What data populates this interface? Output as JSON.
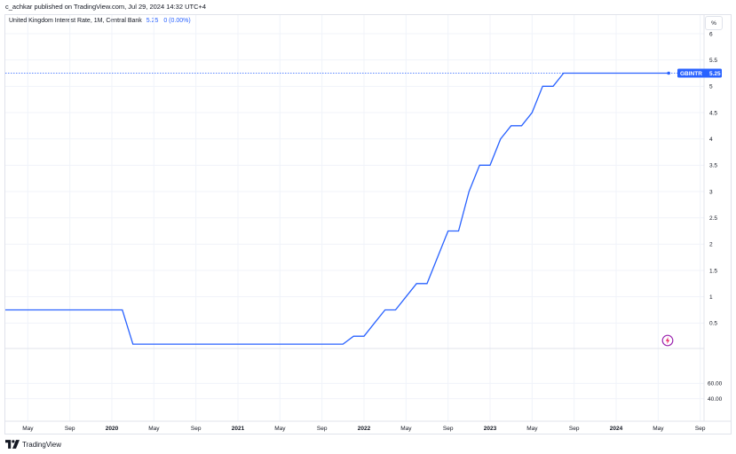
{
  "publisher_line": "c_achkar published on TradingView.com, Jul 29, 2024 14:32 UTC+4",
  "legend": {
    "symbol_desc": "United Kingdom Interest Rate, 1M, Central Bank",
    "last_value": "5.25",
    "change": "0 (0.00%)"
  },
  "scale_button": "%",
  "price_tag": {
    "symbol": "GBINTR",
    "value": "5.25"
  },
  "brand": "TradingView",
  "icons": {
    "brand_logo": "tradingview-logo-icon",
    "flash": "lightning-icon"
  },
  "colors": {
    "line": "#2962ff",
    "tag_bg": "#2962ff",
    "flash": "#9c27b0"
  },
  "chart_data": {
    "type": "line",
    "series": [
      {
        "x": [
          "2019-01",
          "2019-02",
          "2019-03",
          "2019-04",
          "2019-05",
          "2019-06",
          "2019-07",
          "2019-08",
          "2019-09",
          "2019-10",
          "2019-11",
          "2019-12",
          "2020-01",
          "2020-02",
          "2020-03",
          "2020-04",
          "2020-05",
          "2020-06",
          "2020-07",
          "2020-08",
          "2020-09",
          "2020-10",
          "2020-11",
          "2020-12",
          "2021-01",
          "2021-02",
          "2021-03",
          "2021-04",
          "2021-05",
          "2021-06",
          "2021-07",
          "2021-08",
          "2021-09",
          "2021-10",
          "2021-11",
          "2021-12",
          "2022-01",
          "2022-02",
          "2022-03",
          "2022-04",
          "2022-05",
          "2022-06",
          "2022-07",
          "2022-08",
          "2022-09",
          "2022-10",
          "2022-11",
          "2022-12",
          "2023-01",
          "2023-02",
          "2023-03",
          "2023-04",
          "2023-05",
          "2023-06",
          "2023-07",
          "2023-08",
          "2023-09",
          "2023-10",
          "2023-11",
          "2023-12",
          "2024-01",
          "2024-02",
          "2024-03",
          "2024-04",
          "2024-05",
          "2024-06"
        ],
        "y": [
          0.75,
          0.75,
          0.75,
          0.75,
          0.75,
          0.75,
          0.75,
          0.75,
          0.75,
          0.75,
          0.75,
          0.75,
          0.75,
          0.75,
          0.1,
          0.1,
          0.1,
          0.1,
          0.1,
          0.1,
          0.1,
          0.1,
          0.1,
          0.1,
          0.1,
          0.1,
          0.1,
          0.1,
          0.1,
          0.1,
          0.1,
          0.1,
          0.1,
          0.1,
          0.1,
          0.25,
          0.25,
          0.5,
          0.75,
          0.75,
          1.0,
          1.25,
          1.25,
          1.75,
          2.25,
          2.25,
          3.0,
          3.5,
          3.5,
          4.0,
          4.25,
          4.25,
          4.5,
          5.0,
          5.0,
          5.25,
          5.25,
          5.25,
          5.25,
          5.25,
          5.25,
          5.25,
          5.25,
          5.25,
          5.25,
          5.25
        ]
      }
    ],
    "y_ticks": [
      "6",
      "5.5",
      "5",
      "4.5",
      "4",
      "3.5",
      "3",
      "2.5",
      "2",
      "1.5",
      "1",
      "0.5"
    ],
    "lower_ticks": [
      "60.00",
      "40.00"
    ],
    "x_ticks": [
      {
        "label": "May",
        "date": "2019-05"
      },
      {
        "label": "Sep",
        "date": "2019-09"
      },
      {
        "label": "2020",
        "date": "2020-01"
      },
      {
        "label": "May",
        "date": "2020-05"
      },
      {
        "label": "Sep",
        "date": "2020-09"
      },
      {
        "label": "2021",
        "date": "2021-01"
      },
      {
        "label": "May",
        "date": "2021-05"
      },
      {
        "label": "Sep",
        "date": "2021-09"
      },
      {
        "label": "2022",
        "date": "2022-01"
      },
      {
        "label": "May",
        "date": "2022-05"
      },
      {
        "label": "Sep",
        "date": "2022-09"
      },
      {
        "label": "2023",
        "date": "2023-01"
      },
      {
        "label": "May",
        "date": "2023-05"
      },
      {
        "label": "Sep",
        "date": "2023-09"
      },
      {
        "label": "2024",
        "date": "2024-01"
      },
      {
        "label": "May",
        "date": "2024-05"
      },
      {
        "label": "Sep",
        "date": "2024-09"
      }
    ],
    "ylim": [
      0,
      6
    ],
    "lower_ylim": [
      0,
      100
    ],
    "grid": true,
    "legend_position": "top-left"
  }
}
